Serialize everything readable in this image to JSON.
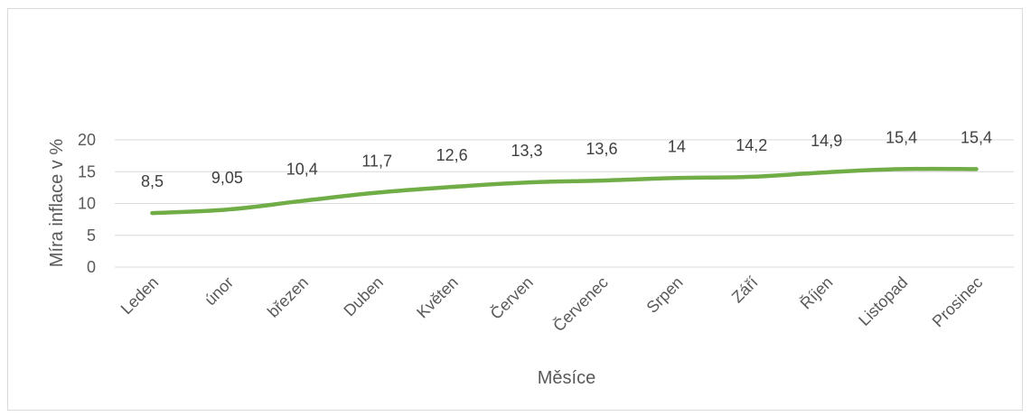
{
  "chart_data": {
    "type": "line",
    "categories": [
      "Leden",
      "únor",
      "březen",
      "Duben",
      "Květen",
      "Červen",
      "Červenec",
      "Srpen",
      "Září",
      "Říjen",
      "Listopad",
      "Prosinec"
    ],
    "series": [
      {
        "values": [
          8.5,
          9.05,
          10.4,
          11.7,
          12.6,
          13.3,
          13.6,
          14,
          14.2,
          14.9,
          15.4,
          15.4
        ],
        "labels": [
          "8,5",
          "9,05",
          "10,4",
          "11,7",
          "12,6",
          "13,3",
          "13,6",
          "14",
          "14,2",
          "14,9",
          "15,4",
          "15,4"
        ],
        "color": "#70ad47"
      }
    ],
    "xlabel": "Měsíce",
    "ylabel": "Míra inflace v %",
    "ylim": [
      0,
      20
    ],
    "yticks": [
      "0",
      "5",
      "10",
      "15",
      "20"
    ],
    "grid": true,
    "legend": "none"
  }
}
